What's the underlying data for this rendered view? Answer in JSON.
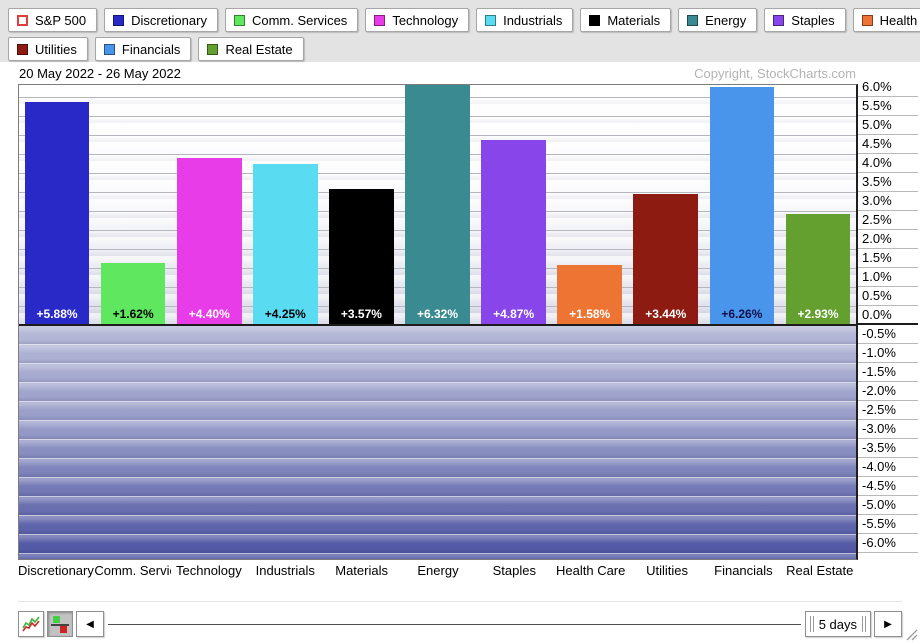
{
  "header": {
    "date_range": "20 May 2022 - 26 May 2022",
    "copyright": "Copyright, StockCharts.com"
  },
  "legend": {
    "rows": [
      [
        {
          "label": "S&P 500",
          "color": "#ffffff",
          "border": "#e23d3d"
        },
        {
          "label": "Discretionary",
          "color": "#2929c8"
        },
        {
          "label": "Comm. Services",
          "color": "#5fe75f"
        },
        {
          "label": "Technology",
          "color": "#e93ce9"
        },
        {
          "label": "Industrials",
          "color": "#59dcf2"
        },
        {
          "label": "Materials",
          "color": "#000000"
        },
        {
          "label": "Energy",
          "color": "#3a8b91"
        },
        {
          "label": "Staples",
          "color": "#8845ea"
        },
        {
          "label": "Health Care",
          "color": "#ee7434"
        }
      ],
      [
        {
          "label": "Utilities",
          "color": "#8e1b12"
        },
        {
          "label": "Financials",
          "color": "#4a95ec"
        },
        {
          "label": "Real Estate",
          "color": "#63a02f"
        }
      ]
    ]
  },
  "chart_data": {
    "type": "bar",
    "categories": [
      "Discretionary",
      "Comm. Services",
      "Technology",
      "Industrials",
      "Materials",
      "Energy",
      "Staples",
      "Health Care",
      "Utilities",
      "Financials",
      "Real Estate"
    ],
    "values": [
      5.88,
      1.62,
      4.4,
      4.25,
      3.57,
      6.32,
      4.87,
      1.58,
      3.44,
      6.26,
      2.93
    ],
    "value_labels": [
      "+5.88%",
      "+1.62%",
      "+4.40%",
      "+4.25%",
      "+3.57%",
      "+6.32%",
      "+4.87%",
      "+1.58%",
      "+3.44%",
      "+6.26%",
      "+2.93%"
    ],
    "bar_colors": [
      "#2929c8",
      "#5fe75f",
      "#e93ce9",
      "#59dcf2",
      "#000000",
      "#3a8b91",
      "#8845ea",
      "#ee7434",
      "#8e1b12",
      "#4a95ec",
      "#63a02f"
    ],
    "value_label_colors": [
      "#ffffff",
      "#000000",
      "#ffffff",
      "#000000",
      "#ffffff",
      "#ffffff",
      "#ffffff",
      "#ffffff",
      "#ffffff",
      "#10104a",
      "#ffffff"
    ],
    "ylim": [
      -6.35,
      6.35
    ],
    "ytick_step": 0.5,
    "yticks": [
      "6.0%",
      "5.5%",
      "5.0%",
      "4.5%",
      "4.0%",
      "3.5%",
      "3.0%",
      "2.5%",
      "2.0%",
      "1.5%",
      "1.0%",
      "0.5%",
      "0.0%",
      "-0.5%",
      "-1.0%",
      "-1.5%",
      "-2.0%",
      "-2.5%",
      "-3.0%",
      "-3.5%",
      "-4.0%",
      "-4.5%",
      "-5.0%",
      "-5.5%",
      "-6.0%"
    ],
    "y_axis_side": "right",
    "grid": true,
    "legend_position": "top",
    "negative_region_shaded": true
  },
  "toolbar": {
    "icons": [
      {
        "name": "line-chart-mode-icon"
      },
      {
        "name": "histogram-mode-icon",
        "state": "selected"
      }
    ],
    "left_arrow": "◀",
    "right_arrow": "▶",
    "period_label": "5 days"
  }
}
